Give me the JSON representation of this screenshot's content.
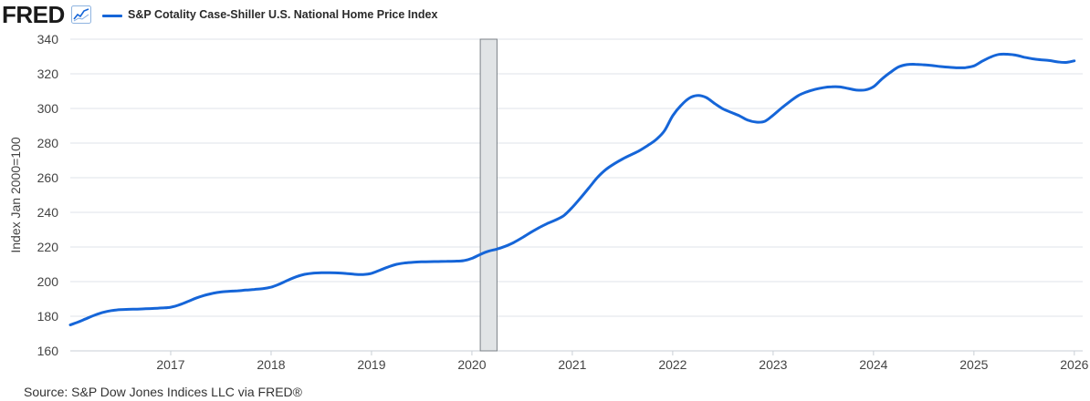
{
  "header": {
    "logo_text": "FRED",
    "logo_icon": "line-chart-icon"
  },
  "colors": {
    "series": "#1565d8",
    "recession": "#e1e4e6",
    "grid": "#dfe3e8",
    "axis_text": "#444444"
  },
  "source_text": "Source: S&P Dow Jones Indices LLC via FRED®",
  "chart_data": {
    "type": "line",
    "title": "",
    "xlabel": "",
    "ylabel": "Index Jan 2000=100",
    "ylim": [
      160,
      340
    ],
    "yticks": [
      160,
      180,
      200,
      220,
      240,
      260,
      280,
      300,
      320,
      340
    ],
    "xlim": [
      "2016-01-01",
      "2026-02-01"
    ],
    "xticks": [
      "2017",
      "2018",
      "2019",
      "2020",
      "2021",
      "2022",
      "2023",
      "2024",
      "2025",
      "2026"
    ],
    "grid": true,
    "legend_position": "top-left",
    "recessions": [
      {
        "start": "2020-02-01",
        "end": "2020-04-01"
      }
    ],
    "series": [
      {
        "name": "S&P Cotality Case-Shiller U.S. National Home Price Index",
        "x": [
          "2016-01",
          "2016-02",
          "2016-03",
          "2016-04",
          "2016-05",
          "2016-06",
          "2016-07",
          "2016-08",
          "2016-09",
          "2016-10",
          "2016-11",
          "2016-12",
          "2017-01",
          "2017-02",
          "2017-03",
          "2017-04",
          "2017-05",
          "2017-06",
          "2017-07",
          "2017-08",
          "2017-09",
          "2017-10",
          "2017-11",
          "2017-12",
          "2018-01",
          "2018-02",
          "2018-03",
          "2018-04",
          "2018-05",
          "2018-06",
          "2018-07",
          "2018-08",
          "2018-09",
          "2018-10",
          "2018-11",
          "2018-12",
          "2019-01",
          "2019-02",
          "2019-03",
          "2019-04",
          "2019-05",
          "2019-06",
          "2019-07",
          "2019-08",
          "2019-09",
          "2019-10",
          "2019-11",
          "2019-12",
          "2020-01",
          "2020-02",
          "2020-03",
          "2020-04",
          "2020-05",
          "2020-06",
          "2020-07",
          "2020-08",
          "2020-09",
          "2020-10",
          "2020-11",
          "2020-12",
          "2021-01",
          "2021-02",
          "2021-03",
          "2021-04",
          "2021-05",
          "2021-06",
          "2021-07",
          "2021-08",
          "2021-09",
          "2021-10",
          "2021-11",
          "2021-12",
          "2022-01",
          "2022-02",
          "2022-03",
          "2022-04",
          "2022-05",
          "2022-06",
          "2022-07",
          "2022-08",
          "2022-09",
          "2022-10",
          "2022-11",
          "2022-12",
          "2023-01",
          "2023-02",
          "2023-03",
          "2023-04",
          "2023-05",
          "2023-06",
          "2023-07",
          "2023-08",
          "2023-09",
          "2023-10",
          "2023-11",
          "2023-12",
          "2024-01",
          "2024-02",
          "2024-03",
          "2024-04",
          "2024-05",
          "2024-06",
          "2024-07",
          "2024-08",
          "2024-09",
          "2024-10",
          "2024-11",
          "2024-12",
          "2025-01",
          "2025-02",
          "2025-03",
          "2025-04",
          "2025-05",
          "2025-06",
          "2025-07",
          "2025-08",
          "2025-09",
          "2025-10",
          "2025-11",
          "2025-12",
          "2026-01"
        ],
        "values": [
          175.0,
          176.8,
          178.8,
          180.8,
          182.3,
          183.3,
          183.8,
          184.0,
          184.1,
          184.3,
          184.5,
          184.8,
          185.2,
          186.5,
          188.4,
          190.4,
          192.0,
          193.2,
          194.0,
          194.4,
          194.7,
          195.1,
          195.5,
          195.9,
          196.8,
          198.6,
          200.8,
          202.8,
          204.2,
          204.9,
          205.1,
          205.1,
          205.0,
          204.7,
          204.2,
          204.1,
          204.8,
          206.6,
          208.5,
          210.0,
          210.8,
          211.2,
          211.4,
          211.5,
          211.6,
          211.7,
          211.8,
          212.1,
          213.4,
          215.7,
          217.6,
          218.8,
          220.4,
          222.6,
          225.3,
          228.3,
          231.1,
          233.5,
          235.6,
          238.2,
          242.9,
          248.4,
          254.2,
          260.1,
          264.7,
          268.0,
          270.8,
          273.2,
          275.6,
          278.6,
          282.0,
          287.0,
          295.8,
          301.8,
          306.0,
          307.5,
          306.3,
          302.9,
          299.8,
          297.7,
          295.7,
          293.2,
          292.1,
          292.6,
          296.1,
          300.2,
          304.0,
          307.4,
          309.5,
          311.0,
          312.0,
          312.5,
          312.4,
          311.5,
          310.6,
          310.7,
          312.6,
          317.0,
          320.8,
          324.0,
          325.3,
          325.5,
          325.2,
          324.8,
          324.2,
          323.8,
          323.5,
          323.6,
          324.6,
          327.3,
          329.7,
          331.2,
          331.3,
          330.8,
          329.6,
          328.7,
          328.1,
          327.7,
          326.9,
          326.6,
          327.5
        ]
      }
    ]
  }
}
